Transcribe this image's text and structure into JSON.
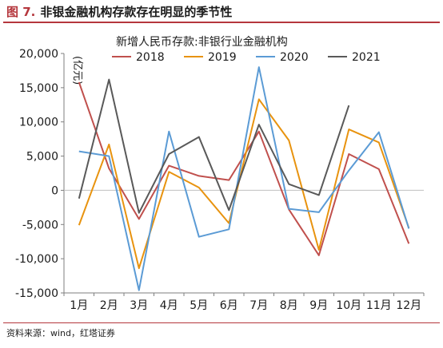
{
  "figure": {
    "label": "图 7.",
    "title": "非银金融机构存款存在明显的季节性"
  },
  "source": "资料来源：wind，红塔证券",
  "chart_data": {
    "type": "line",
    "subtitle": "新增人民币存款:非银行业金融机构",
    "ylabel": "(亿元)",
    "ylim": [
      -15000,
      20000
    ],
    "yticks": [
      -15000,
      -10000,
      -5000,
      0,
      5000,
      10000,
      15000,
      20000
    ],
    "ytick_labels": [
      "-15,000",
      "-10,000",
      "-5,000",
      "0",
      "5,000",
      "10,000",
      "15,000",
      "20,000"
    ],
    "categories": [
      "1月",
      "2月",
      "3月",
      "4月",
      "5月",
      "6月",
      "7月",
      "8月",
      "9月",
      "10月",
      "11月",
      "12月"
    ],
    "grid": false,
    "legend_position": "top",
    "series": [
      {
        "name": "2018",
        "color": "#c0504d",
        "values": [
          15800,
          3200,
          -4200,
          3600,
          2100,
          1500,
          8600,
          -2800,
          -9500,
          5300,
          3100,
          -7800
        ]
      },
      {
        "name": "2019",
        "color": "#e8930f",
        "values": [
          -5100,
          6700,
          -11400,
          2700,
          400,
          -4800,
          13300,
          7300,
          -8700,
          8900,
          7000,
          -5500
        ]
      },
      {
        "name": "2020",
        "color": "#5b9bd5",
        "values": [
          5700,
          5000,
          -14600,
          8600,
          -6800,
          -5700,
          18000,
          -2700,
          -3200,
          2900,
          8500,
          -5600
        ]
      },
      {
        "name": "2021",
        "color": "#595959",
        "values": [
          -1200,
          16200,
          -3300,
          5300,
          7800,
          -2900,
          9600,
          900,
          -700,
          12400,
          null,
          null
        ]
      }
    ]
  }
}
